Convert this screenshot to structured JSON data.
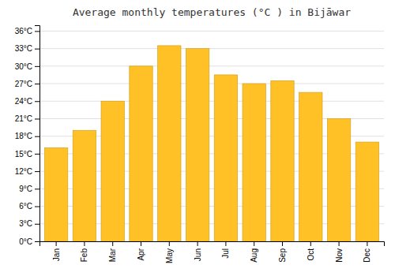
{
  "chart_data": {
    "type": "bar",
    "title": "Average monthly temperatures (°C ) in Bijāwar",
    "categories": [
      "Jan",
      "Feb",
      "Mar",
      "Apr",
      "May",
      "Jun",
      "Jul",
      "Aug",
      "Sep",
      "Oct",
      "Nov",
      "Dec"
    ],
    "values": [
      16,
      19,
      24,
      30,
      33.5,
      33,
      28.5,
      27,
      27.5,
      25.5,
      21,
      17
    ],
    "color": "#FFC125",
    "ylim": [
      0,
      37
    ],
    "yticks": [
      {
        "value": 0,
        "label": "0°C"
      },
      {
        "value": 3,
        "label": "3°C"
      },
      {
        "value": 6,
        "label": "6°C"
      },
      {
        "value": 9,
        "label": "9°C"
      },
      {
        "value": 12,
        "label": "12°C"
      },
      {
        "value": 15,
        "label": "15°C"
      },
      {
        "value": 18,
        "label": "18°C"
      },
      {
        "value": 21,
        "label": "21°C"
      },
      {
        "value": 24,
        "label": "24°C"
      },
      {
        "value": 27,
        "label": "27°C"
      },
      {
        "value": 30,
        "label": "30°C"
      },
      {
        "value": 33,
        "label": "33°C"
      },
      {
        "value": 36,
        "label": "36°C"
      }
    ],
    "grid": true
  }
}
